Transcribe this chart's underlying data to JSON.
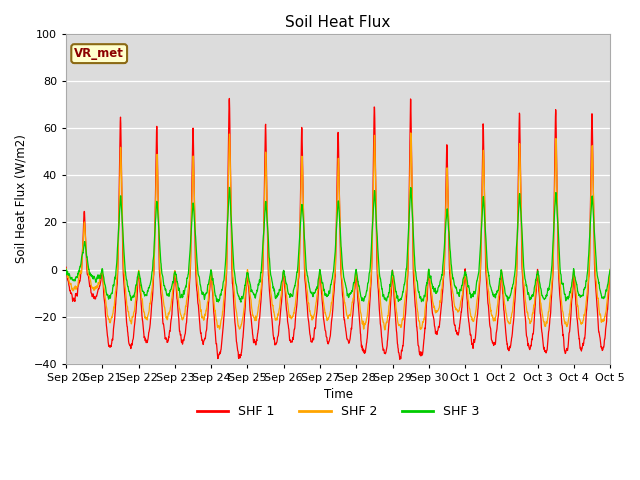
{
  "title": "Soil Heat Flux",
  "ylabel": "Soil Heat Flux (W/m2)",
  "xlabel": "Time",
  "ylim": [
    -40,
    100
  ],
  "yticks": [
    -40,
    -20,
    0,
    20,
    40,
    60,
    80,
    100
  ],
  "colors": {
    "SHF 1": "#FF0000",
    "SHF 2": "#FFA500",
    "SHF 3": "#00CC00"
  },
  "bg_color": "#DCDCDC",
  "legend_label": "VR_met",
  "x_tick_labels": [
    "Sep 20",
    "Sep 21",
    "Sep 22",
    "Sep 23",
    "Sep 24",
    "Sep 25",
    "Sep 26",
    "Sep 27",
    "Sep 28",
    "Sep 29",
    "Sep 30",
    "Oct 1",
    "Oct 2",
    "Oct 3",
    "Oct 4",
    "Oct 5"
  ],
  "n_days": 15,
  "points_per_day": 144,
  "day_peak_scales": [
    0.37,
    1.0,
    0.93,
    0.93,
    1.12,
    0.95,
    0.93,
    0.93,
    1.08,
    1.12,
    0.82,
    0.97,
    1.02,
    1.05,
    1.02
  ]
}
